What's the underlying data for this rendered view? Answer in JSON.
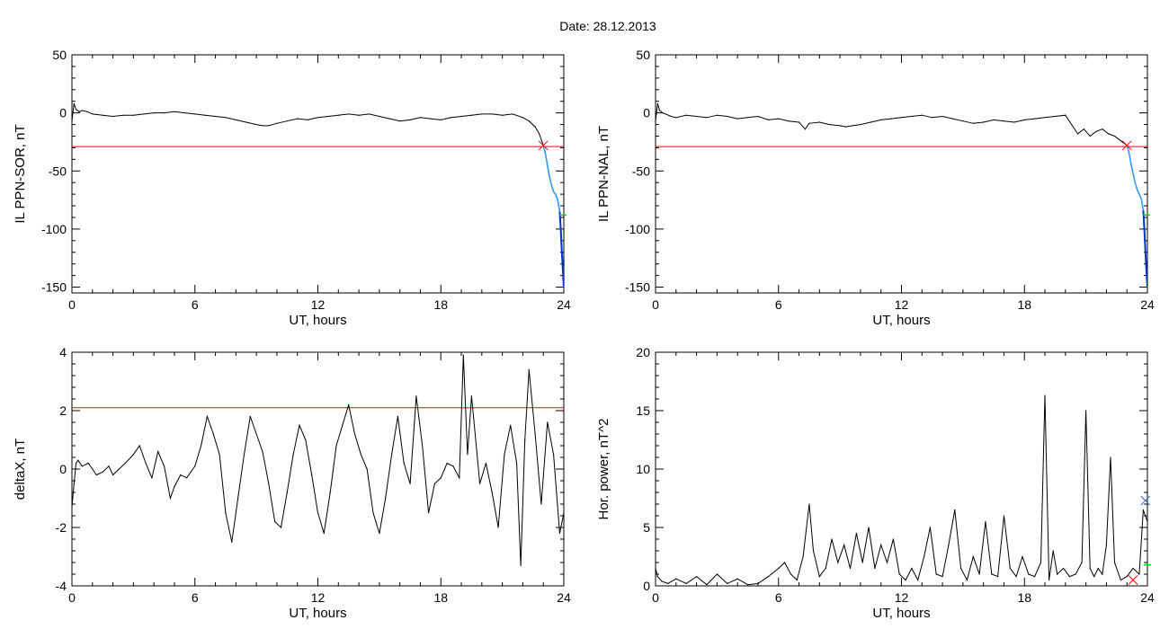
{
  "figure": {
    "title": "Date:  28.12.2013"
  },
  "chart_data": [
    {
      "id": "ppn-sor",
      "type": "line",
      "ylabel": "IL PPN-SOR, nT",
      "xlabel": "UT, hours",
      "xlim": [
        0,
        24
      ],
      "ylim": [
        -155,
        50
      ],
      "xticks": [
        0,
        6,
        12,
        18,
        24
      ],
      "yticks": [
        50,
        0,
        -50,
        -100,
        -150
      ],
      "threshold": {
        "value": -29,
        "color": "#ff0000"
      },
      "colors": {
        "series": "#000000",
        "expansion": "#3399ff",
        "expansion_dark": "#0033cc"
      },
      "series": [
        {
          "x": [
            0,
            0.1,
            0.2,
            0.35,
            0.5,
            0.75,
            1,
            1.5,
            2,
            2.5,
            3,
            3.5,
            4,
            4.5,
            5,
            5.5,
            6,
            6.5,
            7,
            7.5,
            8,
            8.5,
            9,
            9.3,
            9.6,
            10,
            10.5,
            11,
            11.5,
            12,
            12.5,
            13,
            13.5,
            14,
            14.5,
            15,
            15.5,
            16,
            16.5,
            17,
            17.5,
            18,
            18.5,
            19,
            19.5,
            20,
            20.5,
            21,
            21.5,
            22,
            22.3,
            22.6,
            22.8,
            23.0
          ],
          "y": [
            -7,
            8,
            3,
            1,
            2,
            1,
            -1,
            -2,
            -3,
            -2,
            -2,
            -1,
            0,
            0,
            1,
            0,
            -1,
            -2,
            -3,
            -4,
            -6,
            -8,
            -10,
            -11,
            -11,
            -9,
            -7,
            -5,
            -6,
            -4,
            -3,
            -2,
            -1,
            -2,
            -1,
            -3,
            -5,
            -7,
            -6,
            -4,
            -5,
            -6,
            -4,
            -3,
            -2,
            -1,
            -1,
            -2,
            -1,
            -4,
            -7,
            -12,
            -18,
            -28
          ]
        },
        {
          "x": [
            23.0,
            23.1,
            23.2,
            23.3,
            23.4,
            23.5,
            23.6,
            23.7,
            23.8,
            23.85,
            23.9,
            23.95,
            24.0
          ],
          "y": [
            -28,
            -35,
            -45,
            -55,
            -62,
            -68,
            -70,
            -75,
            -85,
            -100,
            -118,
            -135,
            -150
          ]
        }
      ],
      "annotations": [
        {
          "marker": "x",
          "x": 23.0,
          "y": -28,
          "color": "#ff0000"
        },
        {
          "marker": "tick",
          "x": 23.95,
          "y": -88,
          "color": "#00cc00"
        }
      ]
    },
    {
      "id": "ppn-nal",
      "type": "line",
      "ylabel": "IL PPN-NAL, nT",
      "xlabel": "UT, hours",
      "xlim": [
        0,
        24
      ],
      "ylim": [
        -155,
        50
      ],
      "xticks": [
        0,
        6,
        12,
        18,
        24
      ],
      "yticks": [
        50,
        0,
        -50,
        -100,
        -150
      ],
      "threshold": {
        "value": -29,
        "color": "#ff0000"
      },
      "colors": {
        "series": "#000000",
        "expansion": "#3399ff",
        "expansion_dark": "#0033cc"
      },
      "series": [
        {
          "x": [
            0,
            0.1,
            0.2,
            0.35,
            0.5,
            0.75,
            1,
            1.5,
            2,
            2.5,
            3,
            3.5,
            4,
            4.5,
            5,
            5.5,
            6,
            6.5,
            7,
            7.3,
            7.5,
            8,
            8.5,
            9,
            9.3,
            9.6,
            10,
            10.5,
            11,
            11.5,
            12,
            12.5,
            13,
            13.5,
            14,
            14.5,
            15,
            15.5,
            16,
            16.5,
            17,
            17.5,
            18,
            18.5,
            19,
            19.5,
            20,
            20.3,
            20.6,
            20.9,
            21.2,
            21.5,
            21.8,
            22.1,
            22.4,
            22.7,
            23.0
          ],
          "y": [
            -7,
            8,
            2,
            0,
            -1,
            -3,
            -4,
            -2,
            -3,
            -4,
            -2,
            -3,
            -5,
            -4,
            -3,
            -6,
            -5,
            -7,
            -8,
            -14,
            -9,
            -8,
            -10,
            -11,
            -12,
            -11,
            -10,
            -8,
            -6,
            -5,
            -4,
            -3,
            -2,
            -4,
            -3,
            -5,
            -7,
            -9,
            -8,
            -6,
            -7,
            -8,
            -6,
            -5,
            -4,
            -3,
            -2,
            -10,
            -18,
            -14,
            -20,
            -16,
            -14,
            -18,
            -20,
            -24,
            -28
          ]
        },
        {
          "x": [
            23.0,
            23.1,
            23.2,
            23.3,
            23.4,
            23.5,
            23.6,
            23.7,
            23.8,
            23.85,
            23.9,
            23.95,
            24.0
          ],
          "y": [
            -28,
            -34,
            -44,
            -52,
            -60,
            -66,
            -70,
            -74,
            -84,
            -100,
            -118,
            -136,
            -150
          ]
        }
      ],
      "annotations": [
        {
          "marker": "x",
          "x": 23.0,
          "y": -28,
          "color": "#ff0000"
        },
        {
          "marker": "tick",
          "x": 23.95,
          "y": -88,
          "color": "#00cc00"
        }
      ]
    },
    {
      "id": "deltax",
      "type": "line",
      "ylabel": "deltaX, nT",
      "xlabel": "UT, hours",
      "xlim": [
        0,
        24
      ],
      "ylim": [
        -4,
        4
      ],
      "xticks": [
        0,
        6,
        12,
        18,
        24
      ],
      "yticks": [
        4,
        2,
        0,
        -2,
        -4
      ],
      "threshold": {
        "value": 2.1,
        "color": "#ff0000"
      },
      "colors": {
        "series": "#000000"
      },
      "series": [
        {
          "x": [
            0,
            0.1,
            0.2,
            0.3,
            0.5,
            0.8,
            1.0,
            1.2,
            1.5,
            1.8,
            2.0,
            2.3,
            2.6,
            3.0,
            3.3,
            3.6,
            3.9,
            4.2,
            4.5,
            4.8,
            5.0,
            5.3,
            5.6,
            6.0,
            6.3,
            6.6,
            6.9,
            7.2,
            7.5,
            7.8,
            8.1,
            8.4,
            8.7,
            9.0,
            9.3,
            9.6,
            9.9,
            10.2,
            10.5,
            10.8,
            11.1,
            11.4,
            11.7,
            12.0,
            12.3,
            12.6,
            12.9,
            13.2,
            13.5,
            13.8,
            14.1,
            14.4,
            14.7,
            15.0,
            15.3,
            15.6,
            15.9,
            16.2,
            16.5,
            16.8,
            17.1,
            17.4,
            17.7,
            18.0,
            18.3,
            18.6,
            18.9,
            19.1,
            19.3,
            19.5,
            19.7,
            19.9,
            20.2,
            20.5,
            20.8,
            21.1,
            21.4,
            21.7,
            21.9,
            22.1,
            22.3,
            22.6,
            22.9,
            23.2,
            23.5,
            23.8,
            24.0
          ],
          "y": [
            -1.3,
            -0.5,
            0.2,
            0.3,
            0.1,
            0.2,
            0.0,
            -0.2,
            -0.1,
            0.1,
            -0.2,
            0.0,
            0.2,
            0.5,
            0.8,
            0.2,
            -0.3,
            0.6,
            0.1,
            -1.0,
            -0.6,
            -0.2,
            -0.3,
            0.1,
            0.8,
            1.8,
            1.2,
            0.5,
            -1.5,
            -2.5,
            -1.0,
            0.5,
            1.8,
            1.2,
            0.6,
            -0.5,
            -1.8,
            -2.0,
            -0.8,
            0.5,
            1.5,
            1.0,
            -0.2,
            -1.5,
            -2.2,
            -0.8,
            0.8,
            1.5,
            2.2,
            1.2,
            0.5,
            0.0,
            -1.5,
            -2.2,
            -1.0,
            0.5,
            1.8,
            0.2,
            -0.5,
            2.5,
            0.8,
            -1.5,
            -0.5,
            -0.3,
            0.2,
            0.1,
            -0.3,
            3.9,
            0.5,
            2.5,
            1.0,
            -0.5,
            0.2,
            -0.8,
            -2.0,
            0.5,
            1.5,
            0.2,
            -3.3,
            1.0,
            3.4,
            1.2,
            -1.2,
            1.6,
            0.5,
            -2.2,
            -1.5
          ]
        }
      ]
    },
    {
      "id": "hor-power",
      "type": "line",
      "ylabel": "Hor. power, nT^2",
      "xlabel": "UT, hours",
      "xlim": [
        0,
        24
      ],
      "ylim": [
        0,
        20
      ],
      "xticks": [
        0,
        6,
        12,
        18,
        24
      ],
      "yticks": [
        20,
        15,
        10,
        5,
        0
      ],
      "colors": {
        "series": "#000000"
      },
      "series": [
        {
          "x": [
            0,
            0.1,
            0.3,
            0.6,
            1.0,
            1.5,
            2.0,
            2.5,
            3.0,
            3.5,
            4.0,
            4.5,
            5.0,
            5.5,
            6.0,
            6.3,
            6.6,
            6.9,
            7.2,
            7.5,
            7.7,
            8.0,
            8.3,
            8.6,
            8.9,
            9.2,
            9.5,
            9.8,
            10.1,
            10.4,
            10.7,
            11.0,
            11.3,
            11.6,
            11.9,
            12.2,
            12.5,
            12.8,
            13.1,
            13.4,
            13.7,
            14.0,
            14.3,
            14.6,
            14.9,
            15.2,
            15.5,
            15.8,
            16.1,
            16.4,
            16.7,
            17.0,
            17.3,
            17.6,
            17.9,
            18.2,
            18.5,
            18.8,
            19.0,
            19.2,
            19.4,
            19.6,
            19.9,
            20.2,
            20.5,
            20.8,
            21.0,
            21.2,
            21.4,
            21.6,
            21.8,
            22.0,
            22.2,
            22.4,
            22.7,
            23.0,
            23.3,
            23.6,
            23.8,
            24.0
          ],
          "y": [
            1.5,
            0.8,
            0.4,
            0.2,
            0.6,
            0.2,
            0.8,
            0.1,
            1.0,
            0.2,
            0.6,
            0.1,
            0.2,
            0.8,
            1.5,
            2.0,
            1.0,
            0.5,
            2.5,
            7.0,
            3.0,
            0.8,
            1.5,
            4.0,
            2.0,
            3.5,
            1.5,
            4.5,
            2.0,
            5.0,
            1.5,
            3.5,
            2.0,
            4.0,
            1.0,
            0.5,
            1.5,
            0.5,
            2.5,
            5.0,
            1.0,
            0.8,
            3.5,
            6.5,
            1.5,
            0.5,
            2.5,
            1.0,
            5.5,
            1.0,
            0.8,
            6.0,
            1.5,
            0.8,
            2.5,
            1.0,
            0.8,
            2.0,
            16.3,
            0.5,
            3.0,
            1.0,
            1.5,
            0.8,
            1.0,
            2.0,
            15.0,
            1.5,
            0.8,
            1.5,
            1.0,
            3.5,
            11.0,
            2.0,
            0.5,
            0.8,
            1.5,
            1.0,
            6.5,
            5.5
          ]
        }
      ],
      "annotations": [
        {
          "marker": "x",
          "x": 23.9,
          "y": 7.3,
          "color": "#3366cc"
        },
        {
          "marker": "x",
          "x": 23.3,
          "y": 0.5,
          "color": "#ff0000"
        },
        {
          "marker": "tick",
          "x": 24.0,
          "y": 1.8,
          "color": "#00cc00"
        }
      ]
    }
  ]
}
